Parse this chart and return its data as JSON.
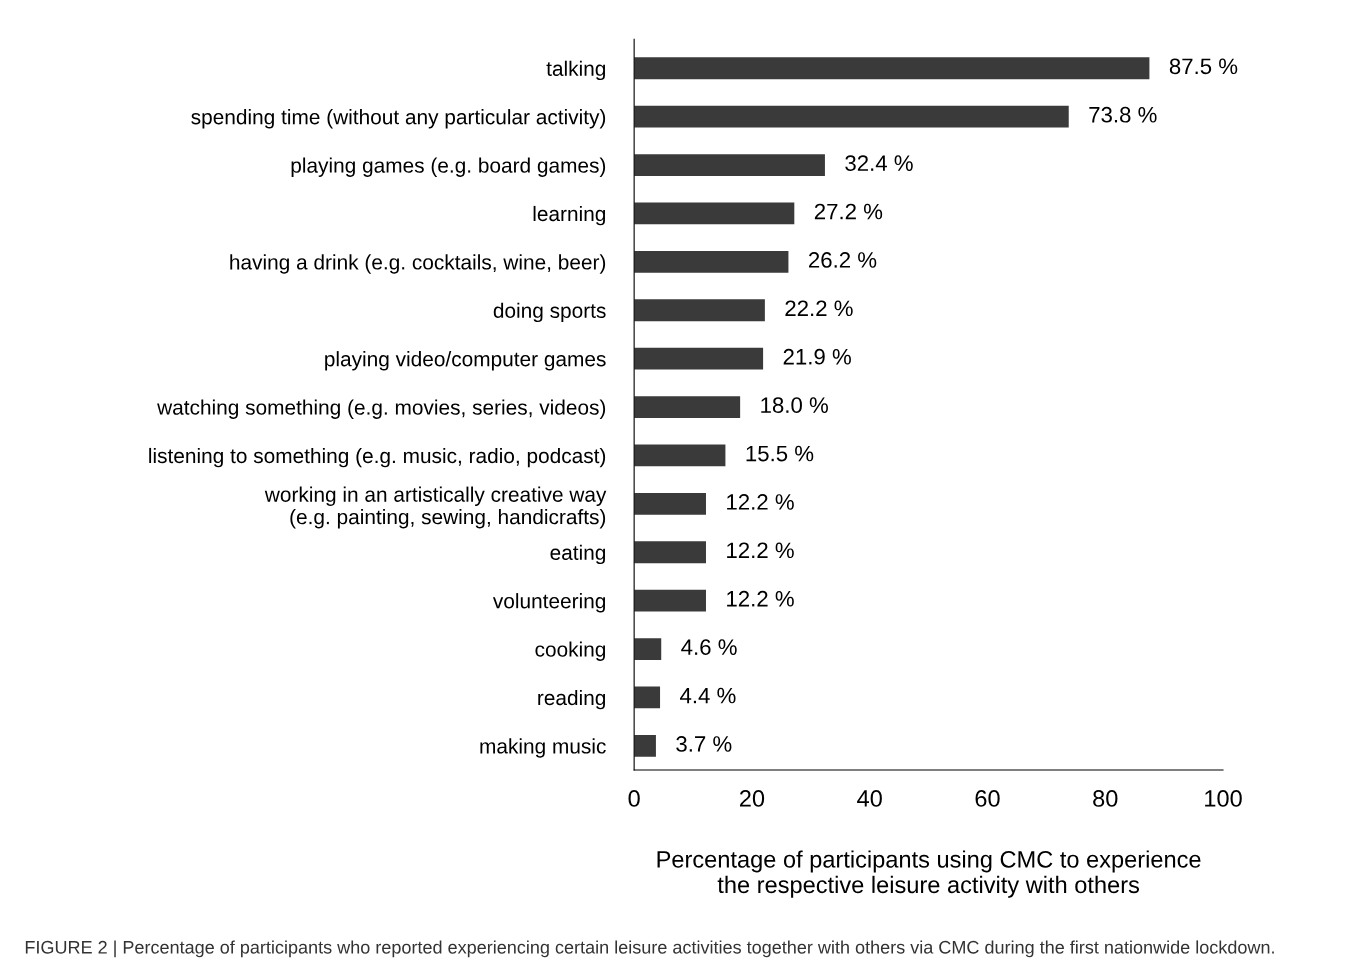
{
  "chart_data": {
    "type": "bar",
    "orientation": "horizontal",
    "categories": [
      "talking",
      "spending time (without any particular activity)",
      "playing games (e.g. board games)",
      "learning",
      "having a drink (e.g. cocktails, wine, beer)",
      "doing sports",
      "playing video/computer games",
      "watching something (e.g. movies, series, videos)",
      "listening to something (e.g. music, radio, podcast)",
      "working in an artistically creative way\n(e.g. painting, sewing, handicrafts)",
      "eating",
      "volunteering",
      "cooking",
      "reading",
      "making music"
    ],
    "values": [
      87.5,
      73.8,
      32.4,
      27.2,
      26.2,
      22.2,
      21.9,
      18.0,
      15.5,
      12.2,
      12.2,
      12.2,
      4.6,
      4.4,
      3.7
    ],
    "value_labels": [
      "87.5 %",
      "73.8 %",
      "32.4 %",
      "27.2 %",
      "26.2 %",
      "22.2 %",
      "21.9 %",
      "18.0 %",
      "15.5 %",
      "12.2 %",
      "12.2 %",
      "12.2 %",
      "4.6 %",
      "4.4 %",
      "3.7 %"
    ],
    "color": "#3a3a3a",
    "xlim": [
      0,
      100
    ],
    "xticks": [
      0,
      20,
      40,
      60,
      80,
      100
    ],
    "xlabel": "Percentage of participants using CMC to experience\nthe respective leisure activity with others",
    "annotations": [
      "FIGURE 2 | Percentage of participants who reported experiencing certain leisure activities together with others via CMC during the first nationwide lockdown."
    ],
    "grid": false,
    "legend": false
  }
}
